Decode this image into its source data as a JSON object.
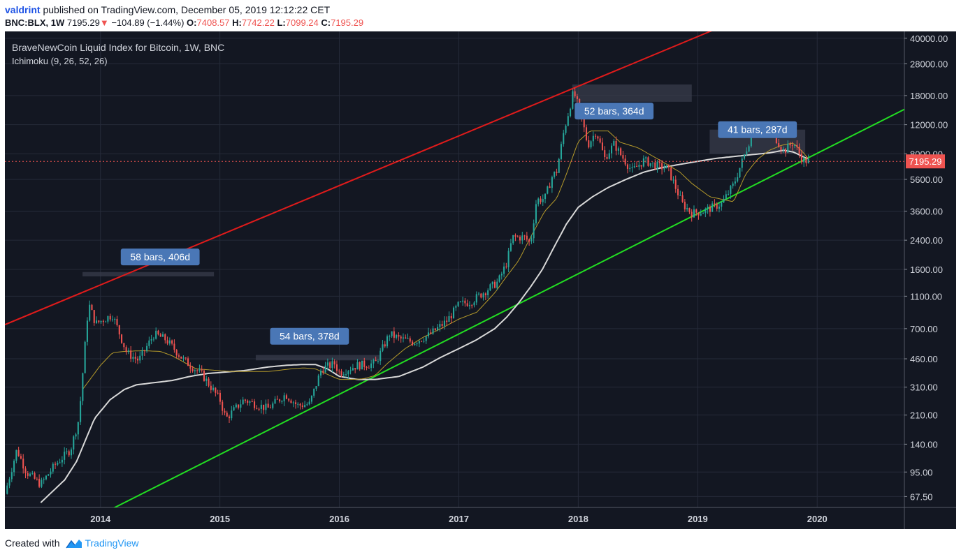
{
  "header": {
    "author": "valdrint",
    "published": "published on TradingView.com, December 05, 2019 12:12:22 CET",
    "symbol": "BNC:BLX, 1W",
    "last": "7195.29",
    "change_arrow": "▼",
    "change": "−104.89 (−1.44%)",
    "o_label": "O:",
    "o_value": "7408.57",
    "h_label": "H:",
    "h_value": "7742.22",
    "l_label": "L:",
    "l_value": "7099.24",
    "c_label": "C:",
    "c_value": "7195.29"
  },
  "footer": {
    "created_with": "Created with",
    "brand": "TradingView"
  },
  "chart_data": {
    "type": "candlestick",
    "title": "BraveNewCoin Liquid Index for Bitcoin, 1W, BNC",
    "indicator": "Ichimoku (9, 26, 52, 26)",
    "y_scale": "log",
    "ylim": [
      58,
      44000
    ],
    "xlim": [
      2013.2,
      2020.73
    ],
    "y_ticks": [
      40000,
      28000,
      18000,
      12000,
      8000,
      5600,
      3600,
      2400,
      1600,
      1100,
      700,
      460,
      310,
      210,
      140,
      95,
      67.5
    ],
    "y_tick_labels": [
      "40000.00",
      "28000.00",
      "18000.00",
      "12000.00",
      "8000.00",
      "5600.00",
      "3600.00",
      "2400.00",
      "1600.00",
      "1100.00",
      "700.00",
      "460.00",
      "310.00",
      "210.00",
      "140.00",
      "95.00",
      "67.50"
    ],
    "x_ticks": [
      2014,
      2015,
      2016,
      2017,
      2018,
      2019,
      2020
    ],
    "x_tick_labels": [
      "2014",
      "2015",
      "2016",
      "2017",
      "2018",
      "2019",
      "2020"
    ],
    "price_label": "7195.29",
    "last_price": 7195.29,
    "colors": {
      "bg": "#131722",
      "grid": "#262b3a",
      "up": "#26a69a",
      "down": "#ef5350",
      "resistance": "#e01b1b",
      "support": "#22dd22",
      "fast_line": "#b59a2a",
      "slow_line": "#d8d8d8",
      "annotation": "#4a77b6",
      "last_price": "#ef5350"
    },
    "price_anchors": [
      [
        2013.2,
        70
      ],
      [
        2013.3,
        130
      ],
      [
        2013.38,
        95
      ],
      [
        2013.5,
        80
      ],
      [
        2013.62,
        105
      ],
      [
        2013.75,
        130
      ],
      [
        2013.82,
        200
      ],
      [
        2013.9,
        1000
      ],
      [
        2013.96,
        750
      ],
      [
        2014.1,
        850
      ],
      [
        2014.22,
        500
      ],
      [
        2014.32,
        450
      ],
      [
        2014.45,
        650
      ],
      [
        2014.55,
        600
      ],
      [
        2014.7,
        450
      ],
      [
        2014.85,
        370
      ],
      [
        2015.0,
        260
      ],
      [
        2015.05,
        200
      ],
      [
        2015.2,
        260
      ],
      [
        2015.4,
        230
      ],
      [
        2015.55,
        280
      ],
      [
        2015.65,
        240
      ],
      [
        2015.75,
        245
      ],
      [
        2015.85,
        400
      ],
      [
        2015.96,
        430
      ],
      [
        2016.0,
        380
      ],
      [
        2016.15,
        420
      ],
      [
        2016.3,
        430
      ],
      [
        2016.42,
        650
      ],
      [
        2016.5,
        610
      ],
      [
        2016.62,
        580
      ],
      [
        2016.75,
        640
      ],
      [
        2016.9,
        780
      ],
      [
        2017.0,
        980
      ],
      [
        2017.1,
        1020
      ],
      [
        2017.2,
        1150
      ],
      [
        2017.33,
        1350
      ],
      [
        2017.4,
        1750
      ],
      [
        2017.45,
        2500
      ],
      [
        2017.55,
        2500
      ],
      [
        2017.6,
        2300
      ],
      [
        2017.65,
        4200
      ],
      [
        2017.72,
        4300
      ],
      [
        2017.78,
        5800
      ],
      [
        2017.82,
        6300
      ],
      [
        2017.88,
        11000
      ],
      [
        2017.96,
        19000
      ],
      [
        2018.02,
        14000
      ],
      [
        2018.08,
        9000
      ],
      [
        2018.15,
        11000
      ],
      [
        2018.22,
        7500
      ],
      [
        2018.3,
        9200
      ],
      [
        2018.35,
        8000
      ],
      [
        2018.45,
        6300
      ],
      [
        2018.55,
        7300
      ],
      [
        2018.65,
        6800
      ],
      [
        2018.75,
        6500
      ],
      [
        2018.87,
        4000
      ],
      [
        2018.95,
        3500
      ],
      [
        2019.05,
        3600
      ],
      [
        2019.2,
        4000
      ],
      [
        2019.3,
        5200
      ],
      [
        2019.4,
        8200
      ],
      [
        2019.46,
        11000
      ],
      [
        2019.55,
        11500
      ],
      [
        2019.65,
        10000
      ],
      [
        2019.72,
        8300
      ],
      [
        2019.8,
        9400
      ],
      [
        2019.88,
        7300
      ],
      [
        2019.93,
        7195.29
      ]
    ],
    "baseline_anchors": [
      [
        2013.85,
        300
      ],
      [
        2014.0,
        420
      ],
      [
        2014.1,
        500
      ],
      [
        2014.2,
        510
      ],
      [
        2014.35,
        515
      ],
      [
        2014.5,
        510
      ],
      [
        2014.6,
        480
      ],
      [
        2014.8,
        400
      ],
      [
        2015.1,
        385
      ],
      [
        2015.4,
        385
      ],
      [
        2015.6,
        400
      ],
      [
        2015.7,
        405
      ],
      [
        2015.8,
        400
      ],
      [
        2015.9,
        370
      ],
      [
        2016.0,
        345
      ],
      [
        2016.1,
        345
      ],
      [
        2016.2,
        348
      ],
      [
        2016.3,
        365
      ],
      [
        2016.4,
        430
      ],
      [
        2016.55,
        530
      ],
      [
        2016.7,
        620
      ],
      [
        2016.85,
        700
      ],
      [
        2017.0,
        800
      ],
      [
        2017.15,
        880
      ],
      [
        2017.3,
        1150
      ],
      [
        2017.4,
        1450
      ],
      [
        2017.5,
        1800
      ],
      [
        2017.6,
        2500
      ],
      [
        2017.72,
        3600
      ],
      [
        2017.82,
        4300
      ],
      [
        2017.9,
        6000
      ],
      [
        2018.0,
        9500
      ],
      [
        2018.1,
        11000
      ],
      [
        2018.25,
        11000
      ],
      [
        2018.35,
        9400
      ],
      [
        2018.5,
        8700
      ],
      [
        2018.7,
        7200
      ],
      [
        2018.85,
        6200
      ],
      [
        2018.95,
        5300
      ],
      [
        2019.1,
        4400
      ],
      [
        2019.3,
        4100
      ],
      [
        2019.4,
        6000
      ],
      [
        2019.5,
        7400
      ],
      [
        2019.6,
        8400
      ],
      [
        2019.7,
        9000
      ],
      [
        2019.8,
        9300
      ],
      [
        2019.88,
        8200
      ],
      [
        2019.93,
        7400
      ]
    ],
    "lagging_anchors": [
      [
        2013.5,
        62
      ],
      [
        2013.7,
        85
      ],
      [
        2013.8,
        110
      ],
      [
        2013.95,
        200
      ],
      [
        2014.08,
        260
      ],
      [
        2014.2,
        300
      ],
      [
        2014.3,
        320
      ],
      [
        2014.45,
        330
      ],
      [
        2014.6,
        340
      ],
      [
        2014.75,
        360
      ],
      [
        2014.9,
        375
      ],
      [
        2015.0,
        380
      ],
      [
        2015.2,
        390
      ],
      [
        2015.4,
        410
      ],
      [
        2015.55,
        420
      ],
      [
        2015.7,
        425
      ],
      [
        2015.8,
        425
      ],
      [
        2015.9,
        400
      ],
      [
        2016.0,
        360
      ],
      [
        2016.15,
        345
      ],
      [
        2016.3,
        345
      ],
      [
        2016.5,
        360
      ],
      [
        2016.7,
        410
      ],
      [
        2016.85,
        470
      ],
      [
        2017.0,
        530
      ],
      [
        2017.15,
        600
      ],
      [
        2017.3,
        700
      ],
      [
        2017.4,
        820
      ],
      [
        2017.5,
        1000
      ],
      [
        2017.6,
        1250
      ],
      [
        2017.7,
        1600
      ],
      [
        2017.8,
        2200
      ],
      [
        2017.9,
        3000
      ],
      [
        2018.0,
        3800
      ],
      [
        2018.12,
        4400
      ],
      [
        2018.25,
        5000
      ],
      [
        2018.4,
        5600
      ],
      [
        2018.55,
        6200
      ],
      [
        2018.7,
        6600
      ],
      [
        2018.85,
        6900
      ],
      [
        2019.0,
        7200
      ],
      [
        2019.15,
        7500
      ],
      [
        2019.3,
        7700
      ],
      [
        2019.45,
        7900
      ],
      [
        2019.6,
        8100
      ],
      [
        2019.72,
        8400
      ],
      [
        2019.8,
        8200
      ],
      [
        2019.93,
        7400
      ]
    ],
    "resistance_line": {
      "p1": [
        2013.2,
        740
      ],
      "p2": [
        2018.0,
        20500
      ]
    },
    "support_line": {
      "p1": [
        2014.2,
        62
      ],
      "p2": [
        2018.9,
        3200
      ]
    },
    "annotations": [
      {
        "text": "58 bars, 406d",
        "x": 2014.5,
        "y": 1900
      },
      {
        "text": "54 bars, 378d",
        "x": 2015.75,
        "y": 630
      },
      {
        "text": "52 bars, 364d",
        "x": 2018.3,
        "y": 14500
      },
      {
        "text": "41 bars, 287d",
        "x": 2019.5,
        "y": 11200
      }
    ],
    "ranges": [
      {
        "x1": 2013.85,
        "x2": 2014.95,
        "y1": 1450,
        "y2": 1540
      },
      {
        "x1": 2015.3,
        "x2": 2016.35,
        "y1": 450,
        "y2": 485
      },
      {
        "x1": 2017.95,
        "x2": 2018.95,
        "y1": 16500,
        "y2": 21000
      },
      {
        "x1": 2019.1,
        "x2": 2019.9,
        "y1": 8000,
        "y2": 11200
      }
    ]
  }
}
